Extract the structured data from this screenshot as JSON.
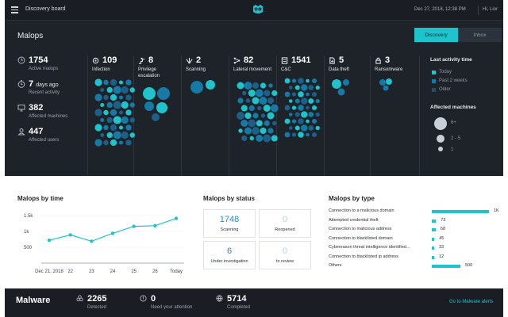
{
  "topbar": {
    "title": "Discovery board",
    "datetime": "Dec 27, 2018, 12:38 PM",
    "user": "Hi, Lior"
  },
  "malops": {
    "title": "Malops",
    "tabs": [
      "Discovery",
      "Inbox"
    ],
    "active_tab": "Discovery"
  },
  "stats": [
    {
      "icon": "clock-icon",
      "value": "1754",
      "label": "Active malops"
    },
    {
      "icon": "stopwatch-icon",
      "value": "7",
      "unit": "days ago",
      "label": "Recent activity"
    },
    {
      "icon": "monitor-icon",
      "value": "382",
      "label": "Affected machines"
    },
    {
      "icon": "user-icon",
      "value": "447",
      "label": "Affected users"
    }
  ],
  "categories": [
    {
      "icon": "infection-icon",
      "count": "109",
      "label": "Infection"
    },
    {
      "icon": "privilege-escalation-icon",
      "count": "8",
      "label": "Privilege\nescalation"
    },
    {
      "icon": "scanning-icon",
      "count": "2",
      "label": "Scanning"
    },
    {
      "icon": "lateral-movement-icon",
      "count": "82",
      "label": "Lateral movement"
    },
    {
      "icon": "c2-icon",
      "count": "1541",
      "label": "C&C"
    },
    {
      "icon": "data-theft-icon",
      "count": "5",
      "label": "Data theft"
    },
    {
      "icon": "ransomware-icon",
      "count": "3",
      "label": "Ransomware"
    }
  ],
  "legend": {
    "activity_title": "Last activity time",
    "activity_items": [
      {
        "label": "Today",
        "color": "#1fc3cb"
      },
      {
        "label": "Past 2 weeks",
        "color": "#1679a6"
      },
      {
        "label": "Older",
        "color": "#2f4a5e"
      }
    ],
    "machines_title": "Affected machines",
    "machines_items": [
      "6+",
      "2 - 5",
      "1"
    ]
  },
  "time_chart": {
    "title": "Malops by time",
    "chart_data": {
      "type": "line",
      "categories": [
        "Dec 21, 2018",
        "22",
        "23",
        "24",
        "25",
        "26",
        "Today"
      ],
      "values": [
        720,
        890,
        690,
        940,
        1160,
        1180,
        1410
      ],
      "yticks": [
        "1.5k",
        "1k",
        "500"
      ],
      "ylim": [
        0,
        1600
      ],
      "color": "#1fc3cb"
    }
  },
  "status": {
    "title": "Malops by status",
    "items": [
      {
        "value": "1748",
        "label": "Scanning",
        "active": true
      },
      {
        "value": "0",
        "label": "Reopened",
        "active": false
      },
      {
        "value": "6",
        "label": "Under investigation",
        "active": true
      },
      {
        "value": "0",
        "label": "to review",
        "active": false
      }
    ]
  },
  "types": {
    "title": "Malops by type",
    "chart_data": {
      "type": "bar",
      "categories": [
        "Connection to a malicious domain",
        "Attempted credential theft",
        "Connection to malicious address",
        "Connection to blacklisted domain",
        "Cybereason threat intelligence identified...",
        "Connection to blacklisted ip address",
        "Others"
      ],
      "values": [
        1000,
        73,
        68,
        45,
        33,
        12,
        500
      ],
      "labels": [
        "1K",
        "73",
        "68",
        "45",
        "33",
        "12",
        "500"
      ],
      "color": "#1fc3cb"
    }
  },
  "malware": {
    "title": "Malware",
    "stats": [
      {
        "icon": "biohazard-icon",
        "value": "2265",
        "label": "Detected"
      },
      {
        "icon": "alert-icon",
        "value": "0",
        "label": "Need your attention"
      },
      {
        "icon": "globe-icon",
        "value": "5714",
        "label": "Completed"
      }
    ],
    "link": "Go to Malware alerts"
  }
}
